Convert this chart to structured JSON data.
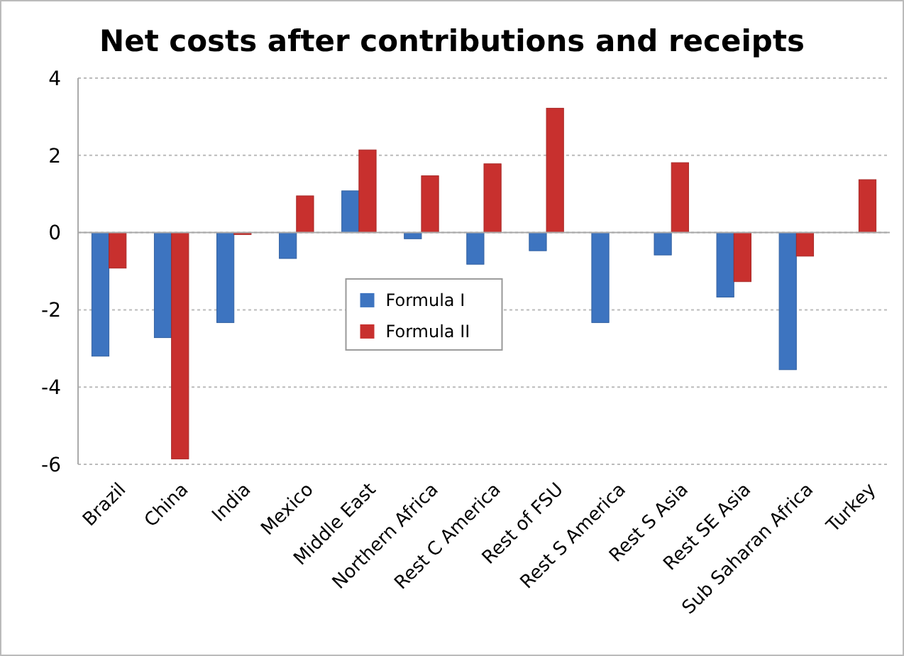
{
  "chart_data": {
    "type": "bar",
    "title": "Net costs after contributions and receipts",
    "categories": [
      "Brazil",
      "China",
      "India",
      "Mexico",
      "Middle East",
      "Northern Africa",
      "Rest C America",
      "Rest of FSU",
      "Rest S America",
      "Rest S Asia",
      "Rest SE Asia",
      "Sub Saharan Africa",
      "Turkey"
    ],
    "series": [
      {
        "name": "Formula I",
        "color": "#3d74c0",
        "values": [
          -3.2,
          -2.72,
          -2.33,
          -0.67,
          1.08,
          -0.16,
          -0.82,
          -0.47,
          -2.33,
          -0.58,
          -1.67,
          -3.55,
          null
        ]
      },
      {
        "name": "Formula II",
        "color": "#c8302e",
        "values": [
          -0.92,
          -5.86,
          -0.05,
          0.95,
          2.14,
          1.47,
          1.78,
          3.22,
          null,
          1.81,
          -1.27,
          -0.61,
          1.37
        ]
      }
    ],
    "ylim": [
      -6,
      4
    ],
    "yticks": [
      -6,
      -4,
      -2,
      0,
      2,
      4
    ],
    "grid": "y",
    "legend": "center"
  }
}
